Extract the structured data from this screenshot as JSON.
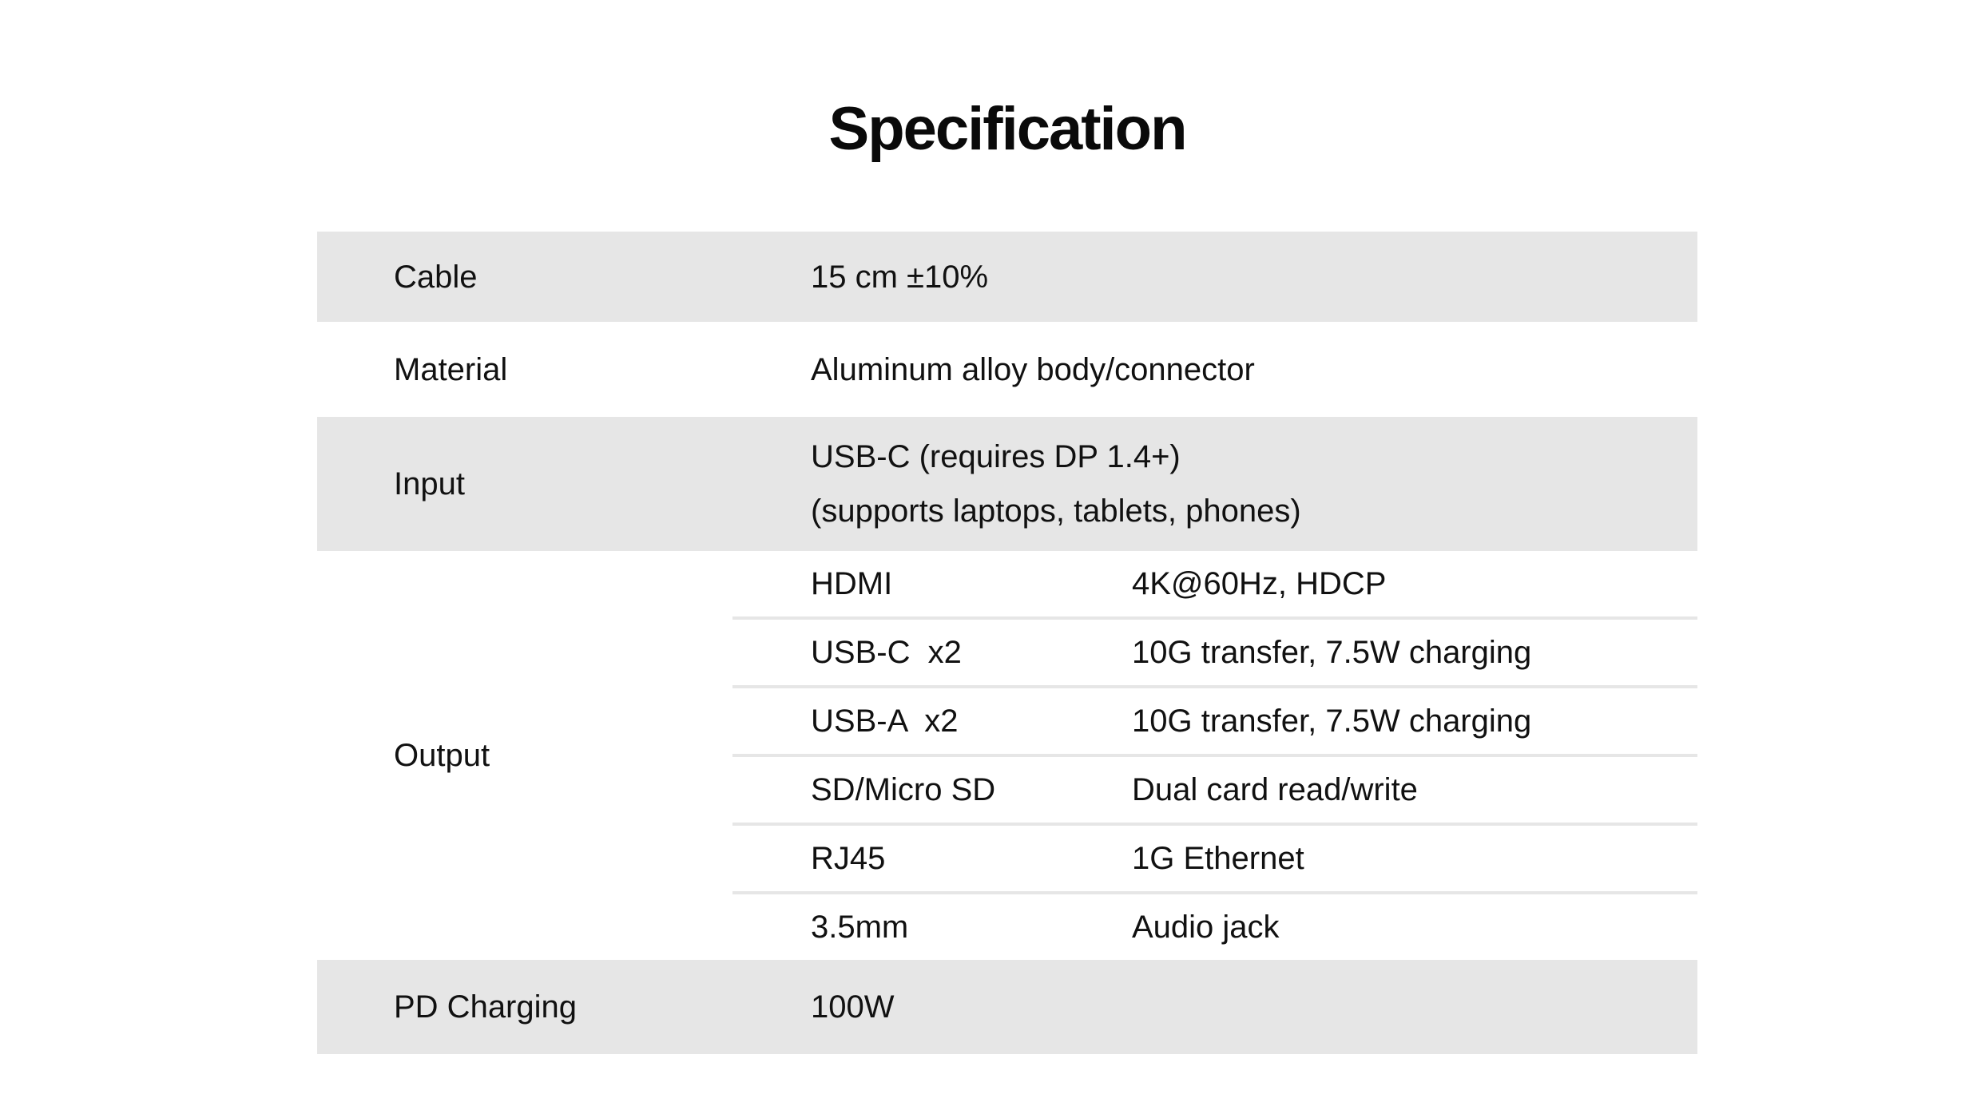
{
  "page": {
    "title": "Specification"
  },
  "colors": {
    "background": "#ffffff",
    "row_band": "#e6e6e6",
    "divider": "#e6e6e6",
    "text": "#111111"
  },
  "table": {
    "rows": [
      {
        "label": "Cable",
        "value": "15 cm ±10%"
      },
      {
        "label": "Material",
        "value": "Aluminum alloy body/connector"
      },
      {
        "label": "Input",
        "value_lines": [
          "USB-C (requires DP 1.4+)",
          "(supports laptops, tablets, phones)"
        ]
      },
      {
        "label": "Output",
        "subrows": [
          {
            "name": "HDMI",
            "detail": "4K@60Hz, HDCP"
          },
          {
            "name": "USB-C  x2",
            "detail": "10G transfer, 7.5W charging"
          },
          {
            "name": "USB-A  x2",
            "detail": "10G transfer, 7.5W charging"
          },
          {
            "name": "SD/Micro SD",
            "detail": "Dual card read/write"
          },
          {
            "name": "RJ45",
            "detail": "1G Ethernet"
          },
          {
            "name": "3.5mm",
            "detail": "Audio jack"
          }
        ]
      },
      {
        "label": "PD Charging",
        "value": "100W"
      }
    ]
  }
}
